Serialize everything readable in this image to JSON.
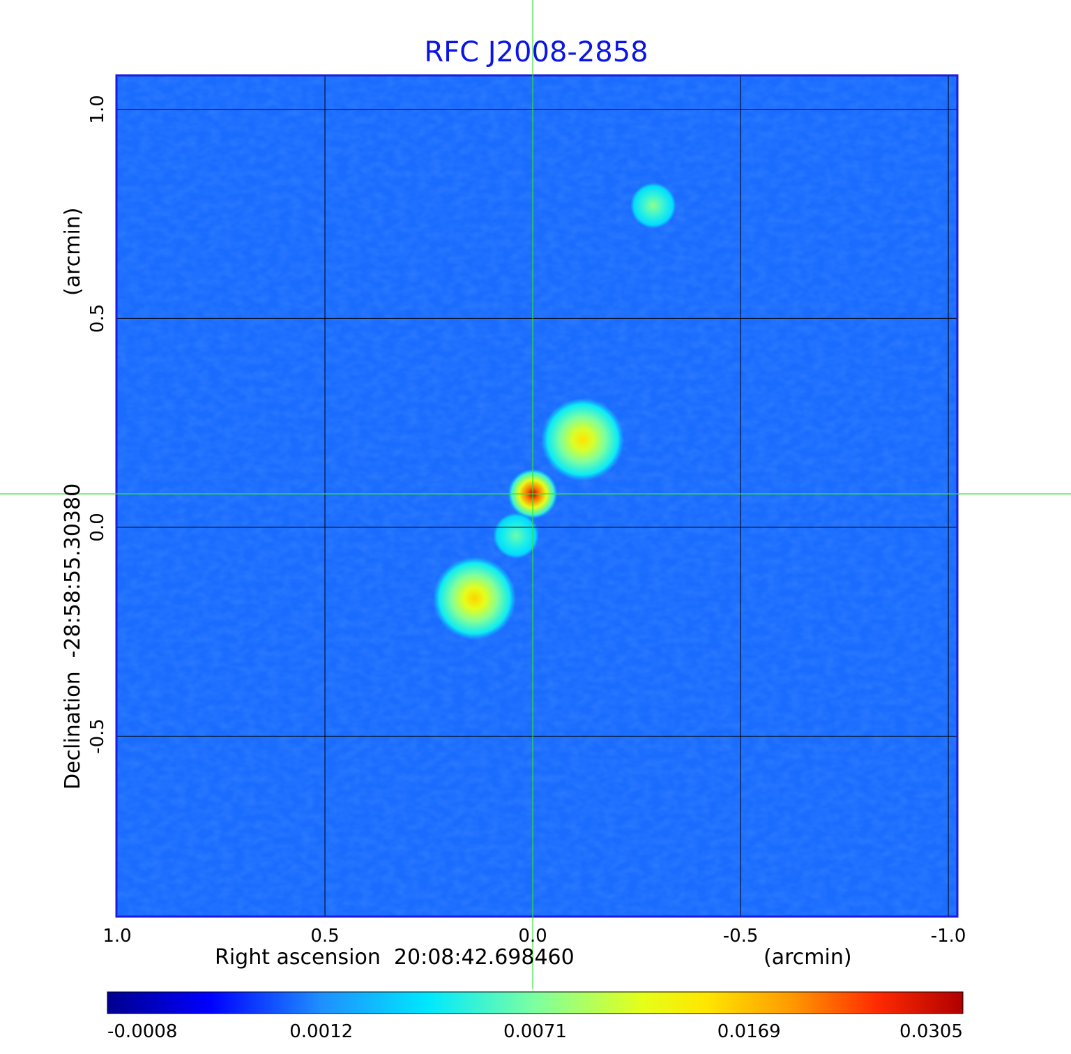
{
  "title": "RFC J2008-2858",
  "colors": {
    "title": "#0a14e6",
    "frame": "#1a1ae0",
    "grid": "#000000",
    "crosshair": "#33e633",
    "background_map": "#1a6cff"
  },
  "chart_data": {
    "type": "heatmap",
    "title": "RFC J2008-2858",
    "xaxis": {
      "label": "Right ascension  20:08:42.698460",
      "unit": "(arcmin)",
      "range": [
        1.0,
        -1.02
      ],
      "ticks": [
        1.0,
        0.5,
        0.0,
        -0.5,
        -1.0
      ],
      "tick_labels": [
        "1.0",
        "0.5",
        "0.0",
        "-0.5",
        "-1.0"
      ]
    },
    "yaxis": {
      "label": "Declination  -28:58:55.30380",
      "unit": "(arcmin)",
      "range": [
        -0.93,
        1.08
      ],
      "ticks": [
        -0.5,
        0.0,
        0.5,
        1.0
      ],
      "tick_labels": [
        "-0.5",
        "0.0",
        "0.5",
        "1.0"
      ]
    },
    "grid": true,
    "crosshair": {
      "x": 0.0,
      "y": 0.08
    },
    "colorbar": {
      "position": "bottom",
      "tick_values": [
        -0.0008,
        0.0012,
        0.0071,
        0.0169,
        0.0305
      ],
      "tick_labels": [
        "-0.0008",
        "0.0012",
        "0.0071",
        "0.0169",
        "0.0305"
      ],
      "colormap": "jet"
    },
    "sources": [
      {
        "x": 0.0,
        "y": 0.08,
        "peak": 0.0305
      },
      {
        "x": -0.12,
        "y": 0.21,
        "peak": 0.014
      },
      {
        "x": 0.14,
        "y": -0.17,
        "peak": 0.015
      },
      {
        "x": 0.04,
        "y": -0.02,
        "peak": 0.006
      },
      {
        "x": -0.29,
        "y": 0.77,
        "peak": 0.007
      }
    ]
  }
}
